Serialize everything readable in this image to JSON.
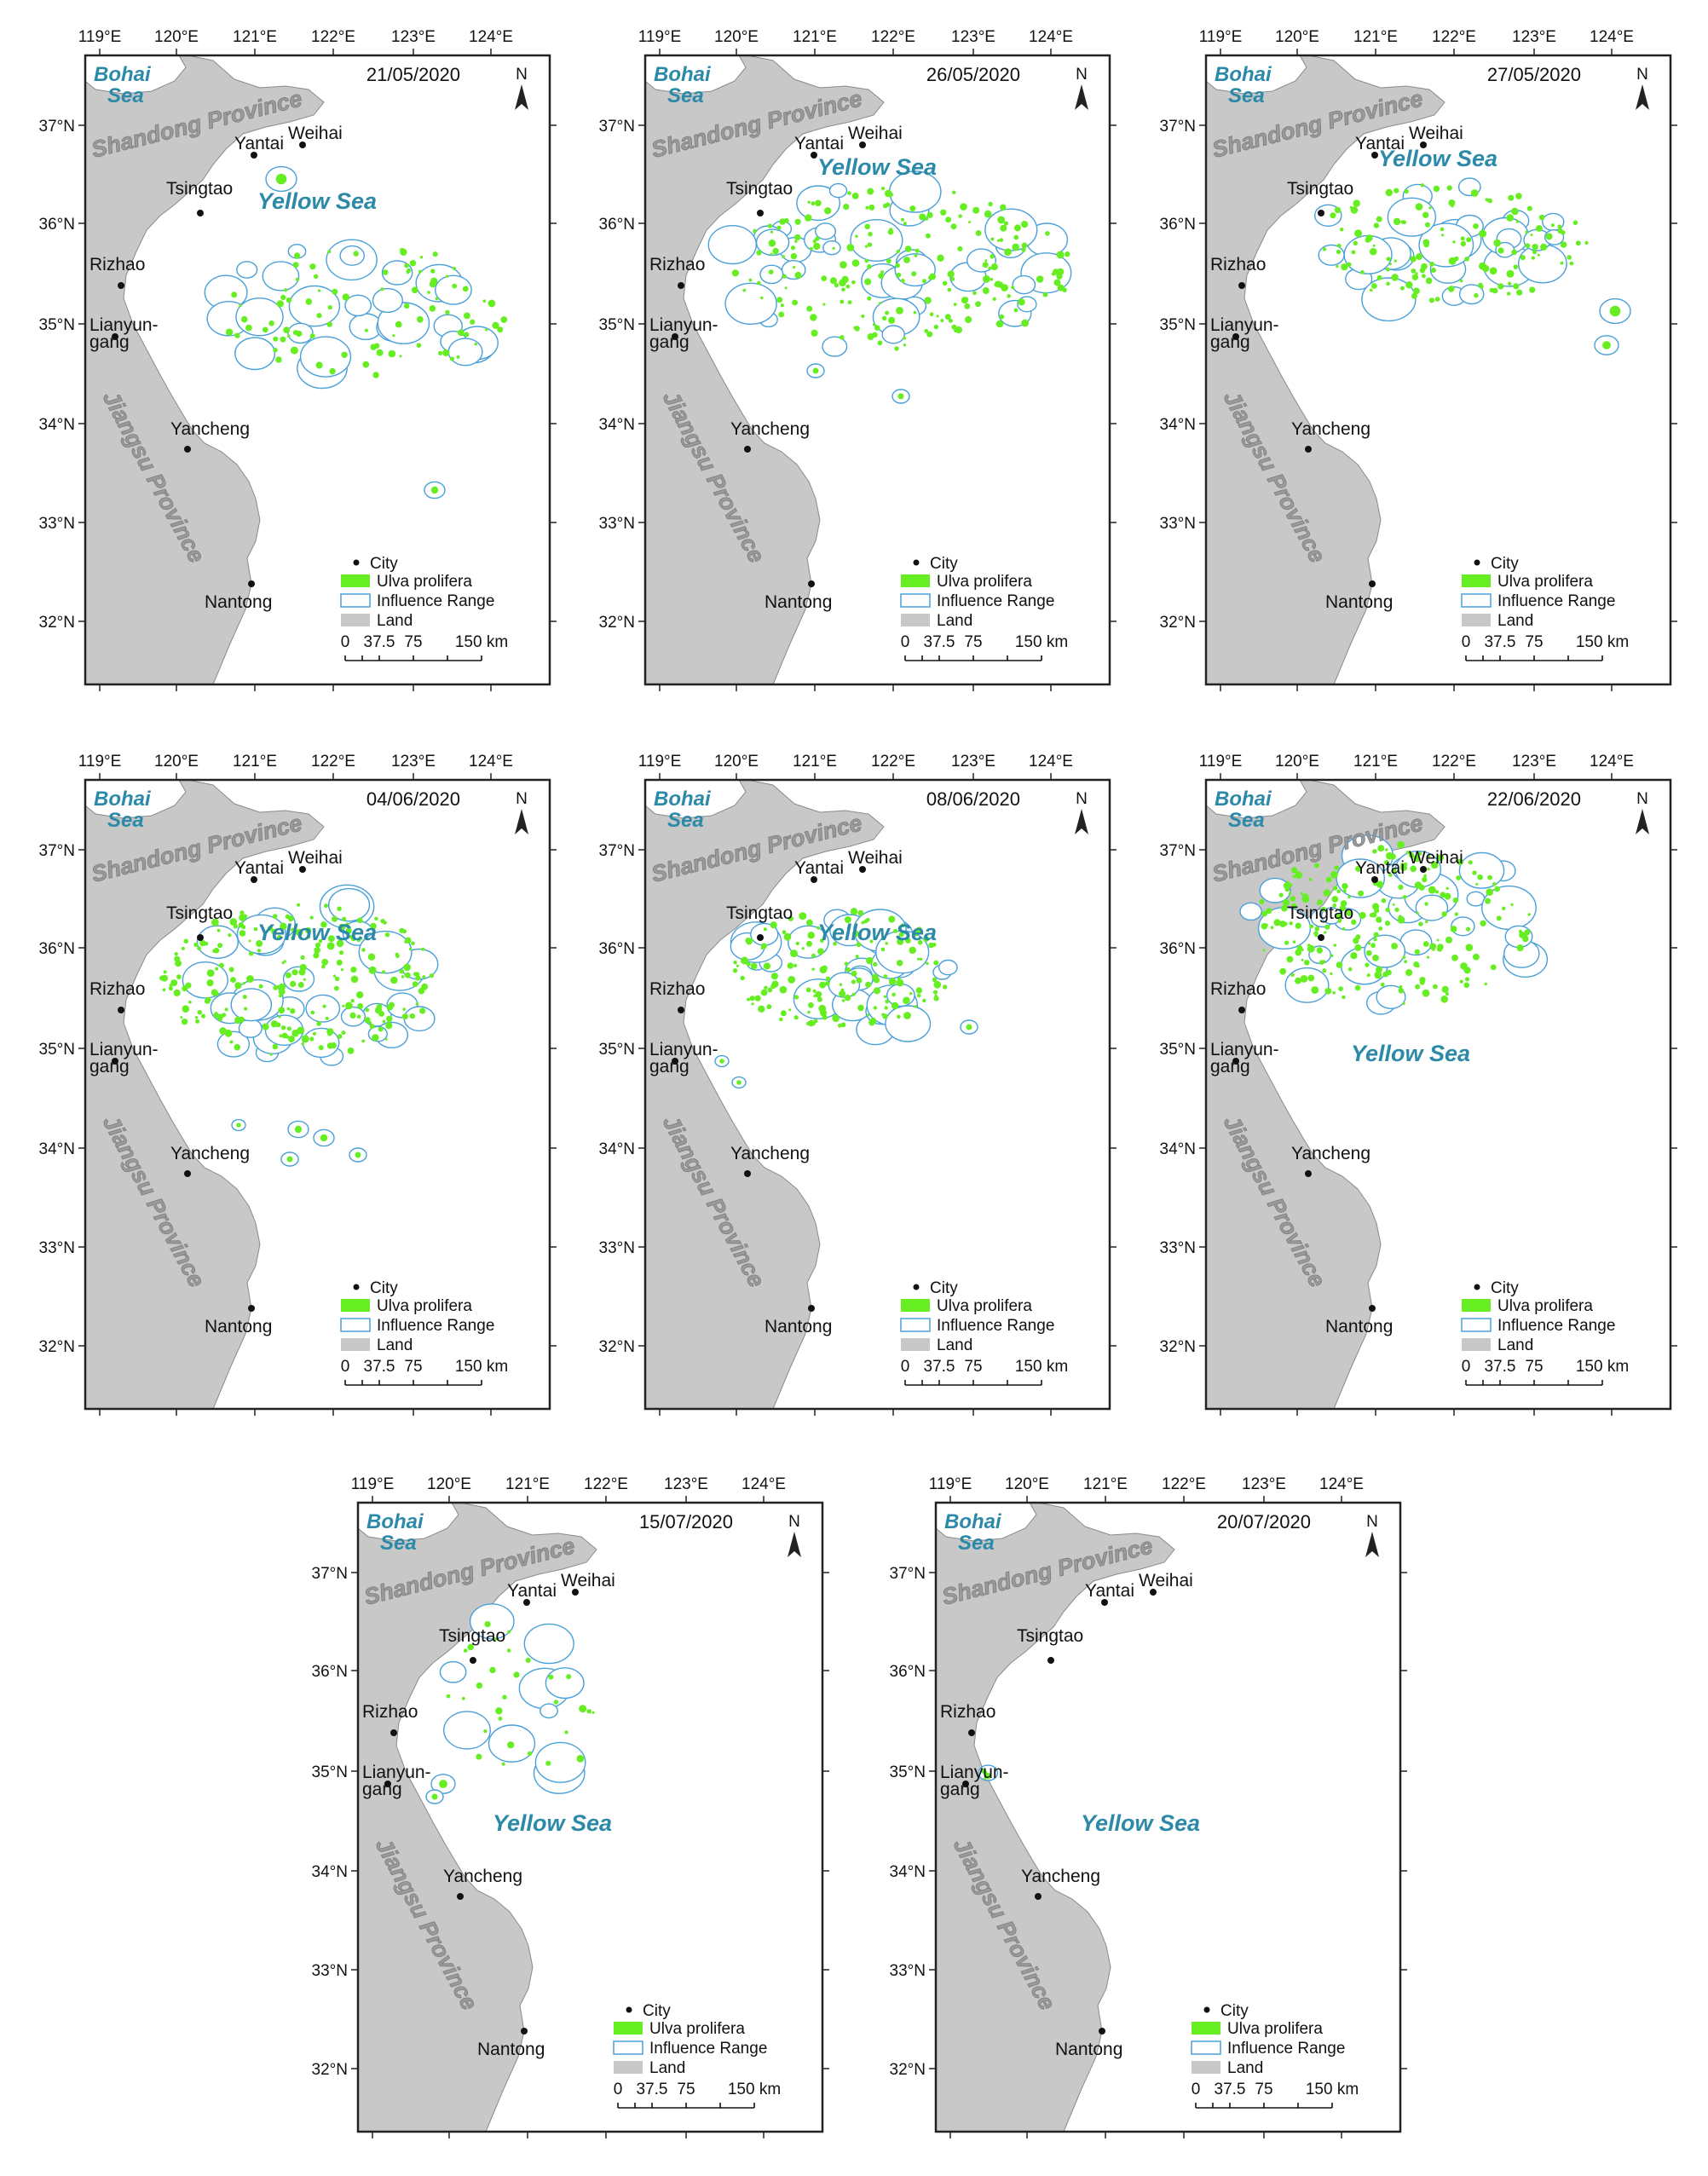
{
  "panels": [
    {
      "date": "21/05/2020",
      "patch_variant": "a"
    },
    {
      "date": "26/05/2020",
      "patch_variant": "b"
    },
    {
      "date": "27/05/2020",
      "patch_variant": "c"
    },
    {
      "date": "04/06/2020",
      "patch_variant": "d"
    },
    {
      "date": "08/06/2020",
      "patch_variant": "e"
    },
    {
      "date": "22/06/2020",
      "patch_variant": "f"
    },
    {
      "date": "15/07/2020",
      "patch_variant": "g"
    },
    {
      "date": "20/07/2020",
      "patch_variant": "h"
    }
  ],
  "longitude_ticks": [
    "119°E",
    "120°E",
    "121°E",
    "122°E",
    "123°E",
    "124°E"
  ],
  "latitude_ticks": [
    "37°N",
    "36°N",
    "35°N",
    "34°N",
    "33°N",
    "32°N"
  ],
  "place_labels": {
    "bohai": [
      "Bohai",
      "Sea"
    ],
    "shandong": "Shandong Province",
    "jiangsu": "Jiangsu Province",
    "yellow_sea": "Yellow Sea"
  },
  "cities": [
    "Weihai",
    "Yantai",
    "Tsingtao",
    "Rizhao",
    "Lianyun-",
    "gang",
    "Yancheng",
    "Nantong"
  ],
  "legend": {
    "city": "City",
    "ulva": "Ulva prolifera",
    "influence": "Influence Range",
    "land": "Land"
  },
  "scale_bar": {
    "labels": [
      "0",
      "37.5",
      "75",
      "150 km"
    ]
  },
  "north_arrow": "N",
  "colors": {
    "land": "#c8c8c8",
    "ulva": "#66ee22",
    "influence_outline": "#4aa0d8",
    "sea_label": "#2c8aa8",
    "province_label": "#9a9a9a"
  }
}
